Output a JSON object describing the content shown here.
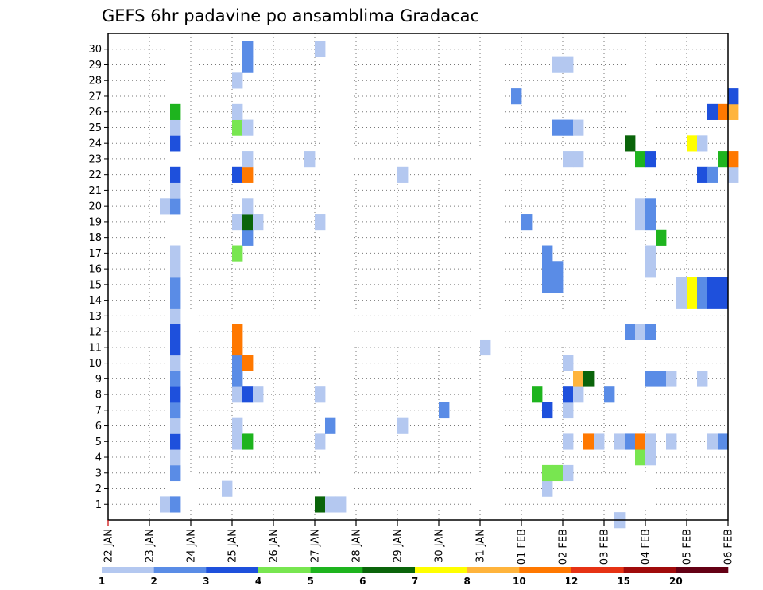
{
  "chart_data": {
    "type": "heatmap",
    "title": "GEFS 6hr padavine po ansamblima Gradacac",
    "xlabel": "",
    "ylabel": "",
    "x_ticks": [
      "22 JAN",
      "23 JAN",
      "24 JAN",
      "25 JAN",
      "26 JAN",
      "27 JAN",
      "28 JAN",
      "29 JAN",
      "30 JAN",
      "31 JAN",
      "01 FEB",
      "02 FEB",
      "03 FEB",
      "04 FEB",
      "05 FEB",
      "06 FEB"
    ],
    "y_ticks": [
      "1",
      "2",
      "3",
      "4",
      "5",
      "6",
      "7",
      "8",
      "9",
      "10",
      "11",
      "12",
      "13",
      "14",
      "15",
      "16",
      "17",
      "18",
      "19",
      "20",
      "21",
      "22",
      "23",
      "24",
      "25",
      "26",
      "27",
      "28",
      "29",
      "30"
    ],
    "steps_per_day": 4,
    "grid": "dotted",
    "legend": {
      "placement": "bottom",
      "labels": [
        "1",
        "2",
        "3",
        "4",
        "5",
        "6",
        "7",
        "8",
        "10",
        "12",
        "15",
        "20"
      ],
      "colors": [
        "#b4c8f0",
        "#5a8ce6",
        "#1e50dc",
        "#78e650",
        "#1eb41e",
        "#0a640a",
        "#ffff00",
        "#ffb43c",
        "#ff7800",
        "#e63214",
        "#a00a0a",
        "#640014"
      ]
    },
    "cells": [
      {
        "m": 1,
        "t": "23 JAN 06",
        "v": 1
      },
      {
        "m": 1,
        "t": "23 JAN 12",
        "v": 2
      },
      {
        "m": 1,
        "t": "27 JAN 00",
        "v": 6
      },
      {
        "m": 1,
        "t": "27 JAN 06",
        "v": 1
      },
      {
        "m": 1,
        "t": "27 JAN 12",
        "v": 1
      },
      {
        "m": 2,
        "t": "24 JAN 18",
        "v": 1
      },
      {
        "m": 2,
        "t": "01 FEB 12",
        "v": 1
      },
      {
        "m": 3,
        "t": "23 JAN 12",
        "v": 2
      },
      {
        "m": 3,
        "t": "01 FEB 12",
        "v": 4
      },
      {
        "m": 3,
        "t": "01 FEB 18",
        "v": 4
      },
      {
        "m": 3,
        "t": "02 FEB 00",
        "v": 1
      },
      {
        "m": 4,
        "t": "23 JAN 12",
        "v": 1
      },
      {
        "m": 4,
        "t": "03 FEB 18",
        "v": 4
      },
      {
        "m": 4,
        "t": "04 FEB 00",
        "v": 1
      },
      {
        "m": 5,
        "t": "23 JAN 12",
        "v": 3
      },
      {
        "m": 5,
        "t": "25 JAN 00",
        "v": 1
      },
      {
        "m": 5,
        "t": "25 JAN 06",
        "v": 5
      },
      {
        "m": 5,
        "t": "27 JAN 00",
        "v": 1
      },
      {
        "m": 5,
        "t": "02 FEB 00",
        "v": 1
      },
      {
        "m": 5,
        "t": "02 FEB 12",
        "v": 10
      },
      {
        "m": 5,
        "t": "02 FEB 18",
        "v": 1
      },
      {
        "m": 5,
        "t": "03 FEB 06",
        "v": 1
      },
      {
        "m": 5,
        "t": "03 FEB 12",
        "v": 2
      },
      {
        "m": 5,
        "t": "03 FEB 18",
        "v": 10
      },
      {
        "m": 5,
        "t": "04 FEB 00",
        "v": 1
      },
      {
        "m": 5,
        "t": "04 FEB 12",
        "v": 1
      },
      {
        "m": 5,
        "t": "05 FEB 12",
        "v": 1
      },
      {
        "m": 5,
        "t": "05 FEB 18",
        "v": 2
      },
      {
        "m": 6,
        "t": "23 JAN 12",
        "v": 1
      },
      {
        "m": 6,
        "t": "25 JAN 00",
        "v": 1
      },
      {
        "m": 6,
        "t": "27 JAN 06",
        "v": 2
      },
      {
        "m": 6,
        "t": "29 JAN 00",
        "v": 1
      },
      {
        "m": 7,
        "t": "23 JAN 12",
        "v": 2
      },
      {
        "m": 7,
        "t": "30 JAN 00",
        "v": 2
      },
      {
        "m": 7,
        "t": "01 FEB 12",
        "v": 3
      },
      {
        "m": 7,
        "t": "02 FEB 00",
        "v": 1
      },
      {
        "m": 8,
        "t": "23 JAN 12",
        "v": 3
      },
      {
        "m": 8,
        "t": "25 JAN 00",
        "v": 1
      },
      {
        "m": 8,
        "t": "25 JAN 06",
        "v": 3
      },
      {
        "m": 8,
        "t": "25 JAN 12",
        "v": 1
      },
      {
        "m": 8,
        "t": "27 JAN 00",
        "v": 1
      },
      {
        "m": 8,
        "t": "01 FEB 06",
        "v": 5
      },
      {
        "m": 8,
        "t": "02 FEB 00",
        "v": 3
      },
      {
        "m": 8,
        "t": "02 FEB 06",
        "v": 1
      },
      {
        "m": 8,
        "t": "03 FEB 00",
        "v": 2
      },
      {
        "m": 9,
        "t": "23 JAN 12",
        "v": 2
      },
      {
        "m": 9,
        "t": "25 JAN 00",
        "v": 2
      },
      {
        "m": 9,
        "t": "02 FEB 06",
        "v": 8
      },
      {
        "m": 9,
        "t": "02 FEB 12",
        "v": 6
      },
      {
        "m": 9,
        "t": "04 FEB 00",
        "v": 2
      },
      {
        "m": 9,
        "t": "04 FEB 06",
        "v": 2
      },
      {
        "m": 9,
        "t": "04 FEB 12",
        "v": 1
      },
      {
        "m": 9,
        "t": "05 FEB 06",
        "v": 1
      },
      {
        "m": 10,
        "t": "23 JAN 12",
        "v": 1
      },
      {
        "m": 10,
        "t": "25 JAN 00",
        "v": 2
      },
      {
        "m": 10,
        "t": "25 JAN 06",
        "v": 10
      },
      {
        "m": 10,
        "t": "02 FEB 00",
        "v": 1
      },
      {
        "m": 11,
        "t": "23 JAN 12",
        "v": 3
      },
      {
        "m": 11,
        "t": "25 JAN 00",
        "v": 10
      },
      {
        "m": 11,
        "t": "31 JAN 00",
        "v": 1
      },
      {
        "m": 12,
        "t": "23 JAN 12",
        "v": 3
      },
      {
        "m": 12,
        "t": "25 JAN 00",
        "v": 10
      },
      {
        "m": 12,
        "t": "03 FEB 12",
        "v": 2
      },
      {
        "m": 12,
        "t": "03 FEB 18",
        "v": 1
      },
      {
        "m": 12,
        "t": "04 FEB 00",
        "v": 2
      },
      {
        "m": 13,
        "t": "23 JAN 12",
        "v": 1
      },
      {
        "m": 14,
        "t": "23 JAN 12",
        "v": 2
      },
      {
        "m": 14,
        "t": "04 FEB 18",
        "v": 1
      },
      {
        "m": 14,
        "t": "05 FEB 00",
        "v": 7
      },
      {
        "m": 14,
        "t": "05 FEB 06",
        "v": 2
      },
      {
        "m": 14,
        "t": "05 FEB 12",
        "v": 3
      },
      {
        "m": 14,
        "t": "05 FEB 18",
        "v": 3
      },
      {
        "m": 15,
        "t": "23 JAN 12",
        "v": 2
      },
      {
        "m": 15,
        "t": "04 FEB 18",
        "v": 1
      },
      {
        "m": 15,
        "t": "05 FEB 00",
        "v": 7
      },
      {
        "m": 15,
        "t": "05 FEB 06",
        "v": 2
      },
      {
        "m": 15,
        "t": "05 FEB 12",
        "v": 3
      },
      {
        "m": 15,
        "t": "05 FEB 18",
        "v": 3
      },
      {
        "m": 15,
        "t": "01 FEB 12",
        "v": 2
      },
      {
        "m": 15,
        "t": "01 FEB 18",
        "v": 2
      },
      {
        "m": 16,
        "t": "23 JAN 12",
        "v": 1
      },
      {
        "m": 16,
        "t": "01 FEB 12",
        "v": 2
      },
      {
        "m": 16,
        "t": "01 FEB 18",
        "v": 2
      },
      {
        "m": 16,
        "t": "04 FEB 00",
        "v": 1
      },
      {
        "m": 17,
        "t": "23 JAN 12",
        "v": 1
      },
      {
        "m": 17,
        "t": "25 JAN 00",
        "v": 4
      },
      {
        "m": 17,
        "t": "01 FEB 12",
        "v": 2
      },
      {
        "m": 17,
        "t": "04 FEB 00",
        "v": 1
      },
      {
        "m": 18,
        "t": "25 JAN 06",
        "v": 2
      },
      {
        "m": 18,
        "t": "04 FEB 06",
        "v": 5
      },
      {
        "m": 19,
        "t": "25 JAN 00",
        "v": 1
      },
      {
        "m": 19,
        "t": "25 JAN 06",
        "v": 6
      },
      {
        "m": 19,
        "t": "25 JAN 12",
        "v": 1
      },
      {
        "m": 19,
        "t": "27 JAN 00",
        "v": 1
      },
      {
        "m": 19,
        "t": "01 FEB 00",
        "v": 2
      },
      {
        "m": 19,
        "t": "03 FEB 18",
        "v": 1
      },
      {
        "m": 19,
        "t": "04 FEB 00",
        "v": 2
      },
      {
        "m": 20,
        "t": "23 JAN 06",
        "v": 1
      },
      {
        "m": 20,
        "t": "23 JAN 12",
        "v": 2
      },
      {
        "m": 20,
        "t": "25 JAN 06",
        "v": 1
      },
      {
        "m": 20,
        "t": "03 FEB 18",
        "v": 1
      },
      {
        "m": 20,
        "t": "04 FEB 00",
        "v": 2
      },
      {
        "m": 21,
        "t": "23 JAN 12",
        "v": 1
      },
      {
        "m": 22,
        "t": "23 JAN 12",
        "v": 3
      },
      {
        "m": 22,
        "t": "25 JAN 00",
        "v": 3
      },
      {
        "m": 22,
        "t": "25 JAN 06",
        "v": 10
      },
      {
        "m": 22,
        "t": "29 JAN 00",
        "v": 1
      },
      {
        "m": 22,
        "t": "05 FEB 06",
        "v": 3
      },
      {
        "m": 22,
        "t": "05 FEB 12",
        "v": 2
      },
      {
        "m": 22,
        "t": "06 FEB 00",
        "v": 1
      },
      {
        "m": 23,
        "t": "25 JAN 06",
        "v": 1
      },
      {
        "m": 23,
        "t": "26 JAN 18",
        "v": 1
      },
      {
        "m": 23,
        "t": "02 FEB 00",
        "v": 1
      },
      {
        "m": 23,
        "t": "02 FEB 06",
        "v": 1
      },
      {
        "m": 23,
        "t": "03 FEB 18",
        "v": 5
      },
      {
        "m": 23,
        "t": "04 FEB 00",
        "v": 3
      },
      {
        "m": 23,
        "t": "05 FEB 18",
        "v": 5
      },
      {
        "m": 23,
        "t": "06 FEB 00",
        "v": 10
      },
      {
        "m": 24,
        "t": "23 JAN 12",
        "v": 3
      },
      {
        "m": 24,
        "t": "03 FEB 12",
        "v": 6
      },
      {
        "m": 24,
        "t": "05 FEB 00",
        "v": 7
      },
      {
        "m": 24,
        "t": "05 FEB 06",
        "v": 1
      },
      {
        "m": 25,
        "t": "23 JAN 12",
        "v": 1
      },
      {
        "m": 25,
        "t": "25 JAN 00",
        "v": 4
      },
      {
        "m": 25,
        "t": "25 JAN 06",
        "v": 1
      },
      {
        "m": 25,
        "t": "01 FEB 18",
        "v": 2
      },
      {
        "m": 25,
        "t": "02 FEB 00",
        "v": 2
      },
      {
        "m": 25,
        "t": "02 FEB 06",
        "v": 1
      },
      {
        "m": 26,
        "t": "23 JAN 12",
        "v": 5
      },
      {
        "m": 26,
        "t": "25 JAN 00",
        "v": 1
      },
      {
        "m": 26,
        "t": "05 FEB 12",
        "v": 3
      },
      {
        "m": 26,
        "t": "05 FEB 18",
        "v": 10
      },
      {
        "m": 26,
        "t": "06 FEB 00",
        "v": 8
      },
      {
        "m": 27,
        "t": "31 JAN 18",
        "v": 2
      },
      {
        "m": 27,
        "t": "06 FEB 00",
        "v": 3
      },
      {
        "m": 28,
        "t": "25 JAN 00",
        "v": 1
      },
      {
        "m": 29,
        "t": "25 JAN 06",
        "v": 2
      },
      {
        "m": 29,
        "t": "01 FEB 18",
        "v": 1
      },
      {
        "m": 29,
        "t": "02 FEB 00",
        "v": 1
      },
      {
        "m": 30,
        "t": "25 JAN 06",
        "v": 2
      },
      {
        "m": 30,
        "t": "27 JAN 00",
        "v": 1
      },
      {
        "m": 0,
        "t": "03 FEB 06",
        "v": 1
      }
    ]
  }
}
